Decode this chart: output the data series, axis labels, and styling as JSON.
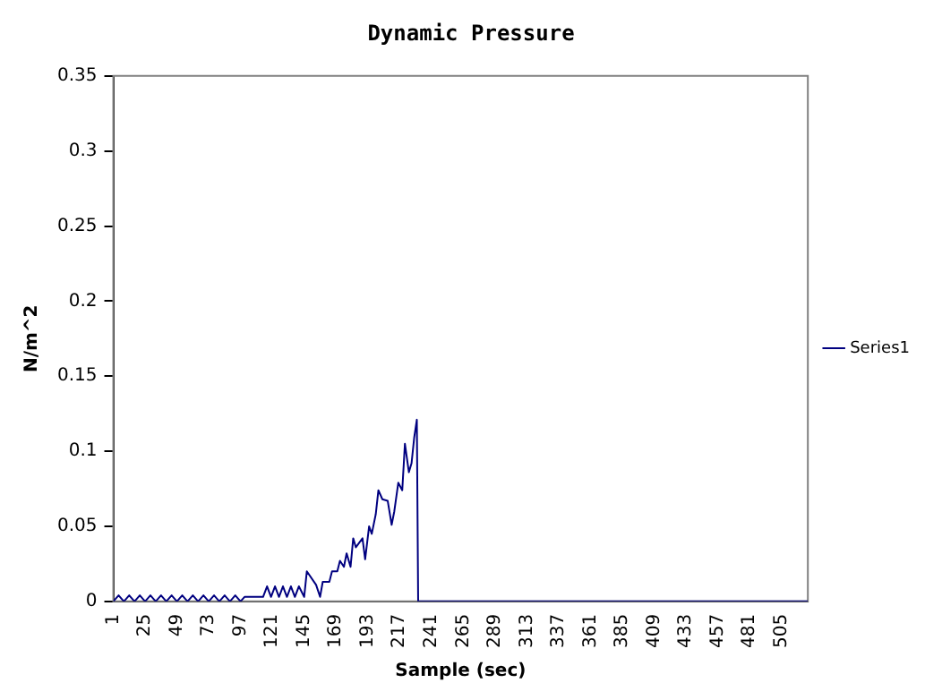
{
  "chart_data": {
    "type": "line",
    "title": "Dynamic Pressure",
    "xlabel": "Sample (sec)",
    "ylabel": "N/m^2",
    "x": [
      1,
      5,
      9,
      13,
      17,
      21,
      25,
      29,
      33,
      37,
      41,
      45,
      49,
      53,
      57,
      61,
      65,
      69,
      73,
      77,
      81,
      85,
      89,
      93,
      97,
      100,
      114,
      117,
      120,
      123,
      126,
      129,
      132,
      135,
      138,
      141,
      145,
      147,
      154,
      157,
      159,
      164,
      166,
      170,
      172,
      175,
      177,
      180,
      182,
      184,
      189,
      191,
      194,
      196,
      199,
      201,
      204,
      208,
      211,
      213,
      216,
      219,
      221,
      224,
      226,
      228,
      230,
      231,
      525
    ],
    "series": [
      {
        "name": "Series1",
        "color": "#000080",
        "values": [
          0,
          0.004,
          0,
          0.004,
          0,
          0.004,
          0,
          0.004,
          0,
          0.004,
          0,
          0.004,
          0,
          0.004,
          0,
          0.004,
          0,
          0.004,
          0,
          0.004,
          0,
          0.004,
          0,
          0.004,
          0,
          0.003,
          0.003,
          0.01,
          0.003,
          0.01,
          0.003,
          0.01,
          0.003,
          0.01,
          0.003,
          0.01,
          0.003,
          0.02,
          0.011,
          0.003,
          0.013,
          0.013,
          0.02,
          0.02,
          0.027,
          0.023,
          0.032,
          0.023,
          0.042,
          0.036,
          0.042,
          0.028,
          0.05,
          0.045,
          0.058,
          0.074,
          0.068,
          0.067,
          0.051,
          0.06,
          0.079,
          0.074,
          0.105,
          0.086,
          0.092,
          0.109,
          0.121,
          0,
          0
        ]
      }
    ],
    "xlim": [
      1,
      525
    ],
    "xticks": [
      1,
      25,
      49,
      73,
      97,
      121,
      145,
      169,
      193,
      217,
      241,
      265,
      289,
      313,
      337,
      361,
      385,
      409,
      433,
      457,
      481,
      505
    ],
    "ylim": [
      0,
      0.35
    ],
    "yticks": [
      0,
      0.05,
      0.1,
      0.15,
      0.2,
      0.25,
      0.3,
      0.35
    ],
    "grid": false,
    "legend": "right",
    "marker": "none",
    "line_style": "solid"
  }
}
